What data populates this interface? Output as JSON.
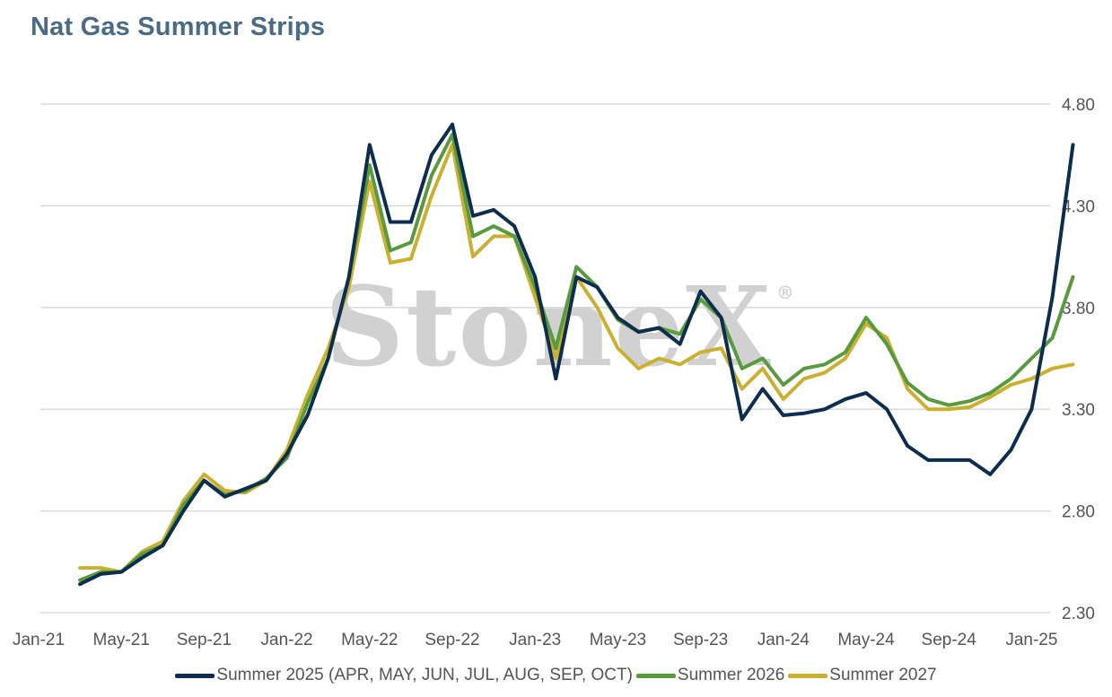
{
  "chart_data": {
    "type": "line",
    "title": "Nat Gas Summer Strips",
    "y_ticks": [
      "2.30",
      "2.80",
      "3.30",
      "3.80",
      "4.30",
      "4.80"
    ],
    "x_ticks": [
      "Jan-21",
      "May-21",
      "Sep-21",
      "Jan-22",
      "May-22",
      "Sep-22",
      "Jan-23",
      "May-23",
      "Sep-23",
      "Jan-24",
      "May-24",
      "Sep-24",
      "Jan-25"
    ],
    "ylim": [
      2.3,
      4.8
    ],
    "y_axis_position": "right",
    "grid": "horizontal",
    "legend_position": "bottom",
    "watermark": "StoneX",
    "x": [
      "Mar-21",
      "Apr-21",
      "May-21",
      "Jun-21",
      "Jul-21",
      "Aug-21",
      "Sep-21",
      "Oct-21",
      "Nov-21",
      "Dec-21",
      "Jan-22",
      "Feb-22",
      "Mar-22",
      "Apr-22",
      "May-22",
      "Jun-22",
      "Jul-22",
      "Aug-22",
      "Sep-22",
      "Oct-22",
      "Nov-22",
      "Dec-22",
      "Jan-23",
      "Feb-23",
      "Mar-23",
      "Apr-23",
      "May-23",
      "Jun-23",
      "Jul-23",
      "Aug-23",
      "Sep-23",
      "Oct-23",
      "Nov-23",
      "Dec-23",
      "Jan-24",
      "Feb-24",
      "Mar-24",
      "Apr-24",
      "May-24",
      "Jun-24",
      "Jul-24",
      "Aug-24",
      "Sep-24",
      "Oct-24",
      "Nov-24",
      "Dec-24",
      "Jan-25",
      "Feb-25",
      "Mar-25"
    ],
    "series": [
      {
        "name": "Summer 2025 (APR, MAY, JUN, JUL, AUG, SEP, OCT)",
        "color": "#0d2d4f",
        "values": [
          2.44,
          2.49,
          2.5,
          2.57,
          2.63,
          2.8,
          2.95,
          2.87,
          2.91,
          2.95,
          3.08,
          3.27,
          3.55,
          3.95,
          4.6,
          4.22,
          4.22,
          4.55,
          4.7,
          4.25,
          4.28,
          4.2,
          3.95,
          3.45,
          3.95,
          3.9,
          3.75,
          3.68,
          3.7,
          3.62,
          3.88,
          3.75,
          3.25,
          3.4,
          3.27,
          3.28,
          3.3,
          3.35,
          3.38,
          3.3,
          3.12,
          3.05,
          3.05,
          3.05,
          2.98,
          3.1,
          3.3,
          3.85,
          4.6
        ]
      },
      {
        "name": "Summer 2026",
        "color": "#5a9a3e",
        "values": [
          2.46,
          2.5,
          2.5,
          2.59,
          2.63,
          2.83,
          2.95,
          2.88,
          2.9,
          2.96,
          3.06,
          3.33,
          3.55,
          3.95,
          4.5,
          4.08,
          4.12,
          4.45,
          4.65,
          4.15,
          4.2,
          4.15,
          3.9,
          3.6,
          4.0,
          3.9,
          3.74,
          3.68,
          3.7,
          3.67,
          3.84,
          3.75,
          3.5,
          3.55,
          3.42,
          3.5,
          3.52,
          3.58,
          3.75,
          3.62,
          3.43,
          3.35,
          3.32,
          3.34,
          3.38,
          3.45,
          3.55,
          3.65,
          3.95
        ]
      },
      {
        "name": "Summer 2027",
        "color": "#c9b030",
        "values": [
          2.52,
          2.52,
          2.5,
          2.6,
          2.65,
          2.85,
          2.98,
          2.9,
          2.89,
          2.95,
          3.1,
          3.37,
          3.6,
          3.9,
          4.42,
          4.02,
          4.04,
          4.35,
          4.6,
          4.05,
          4.15,
          4.15,
          3.85,
          3.55,
          3.95,
          3.8,
          3.6,
          3.5,
          3.55,
          3.52,
          3.58,
          3.6,
          3.4,
          3.5,
          3.35,
          3.45,
          3.48,
          3.55,
          3.72,
          3.65,
          3.4,
          3.3,
          3.3,
          3.31,
          3.36,
          3.42,
          3.45,
          3.5,
          3.52
        ]
      }
    ]
  }
}
